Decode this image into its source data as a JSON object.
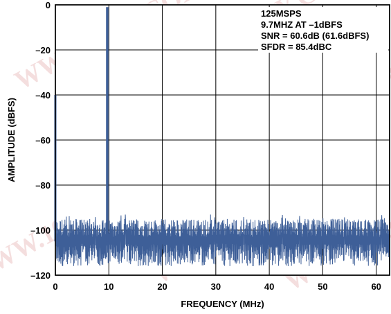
{
  "chart_data": {
    "type": "line",
    "title": "",
    "xlabel": "FREQUENCY (MHz)",
    "ylabel": "AMPLITUDE (dBFS)",
    "xlim": [
      0,
      62.5
    ],
    "ylim": [
      -120,
      0
    ],
    "x_ticks": [
      0,
      10,
      20,
      30,
      40,
      50,
      60
    ],
    "y_ticks": [
      0,
      -20,
      -40,
      -60,
      -80,
      -100,
      -120
    ],
    "x_tick_labels": [
      "0",
      "10",
      "20",
      "30",
      "40",
      "50",
      "60"
    ],
    "y_tick_labels": [
      "0",
      "–20",
      "–40",
      "–60",
      "–80",
      "–100",
      "–120"
    ],
    "grid": true,
    "line_color": "#3e5f98",
    "noise_floor": {
      "typical_db": -105,
      "upper_db": -95,
      "lower_db": -116
    },
    "peaks": [
      {
        "x": 0,
        "y": -40,
        "label": "DC"
      },
      {
        "x": 9.7,
        "y": -1,
        "label": "fundamental"
      }
    ],
    "annotations": [
      "125MSPS",
      "9.7MHZ AT –1dBFS",
      "SNR = 60.6dB (61.6dBFS)",
      "SFDR = 85.4dBC"
    ],
    "watermark": "WWW.100Y.COM"
  }
}
